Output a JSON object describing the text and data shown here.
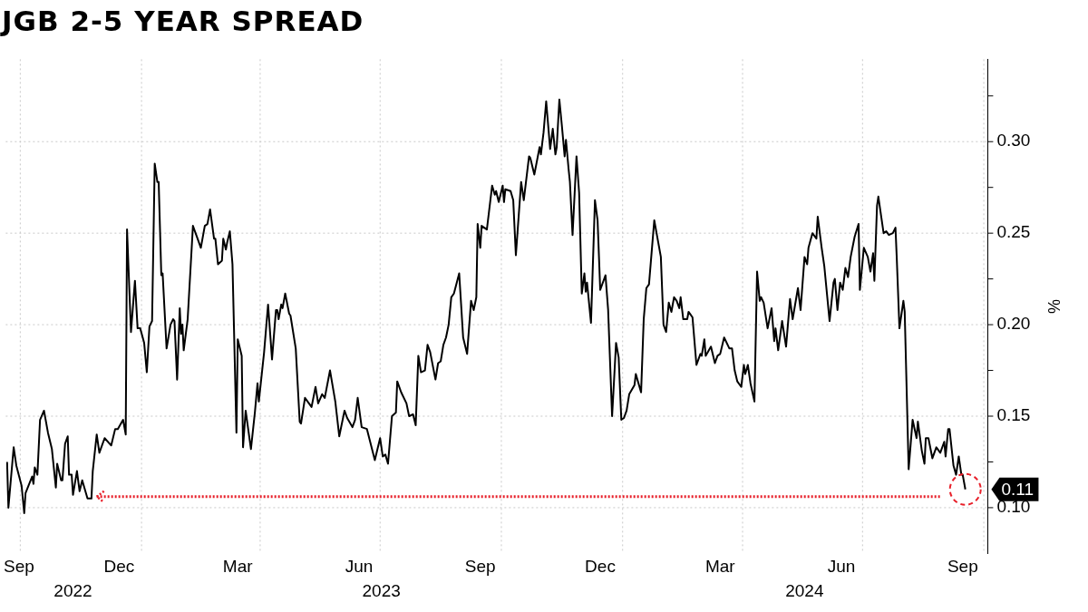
{
  "chart_data": {
    "type": "line",
    "title": "JGB 2-5 YEAR SPREAD",
    "ylabel": "%",
    "xlim": [
      "2022-09-20",
      "2024-10-04"
    ],
    "ylim": [
      0.075,
      0.345
    ],
    "xticks": [
      {
        "value": "2022-09-30",
        "label": "Sep"
      },
      {
        "value": "2022-12-15",
        "label": "Dec"
      },
      {
        "value": "2023-03-15",
        "label": "Mar"
      },
      {
        "value": "2023-06-15",
        "label": "Jun"
      },
      {
        "value": "2023-09-15",
        "label": "Sep"
      },
      {
        "value": "2023-12-15",
        "label": "Dec"
      },
      {
        "value": "2024-03-15",
        "label": "Mar"
      },
      {
        "value": "2024-06-15",
        "label": "Jun"
      },
      {
        "value": "2024-09-15",
        "label": "Sep"
      },
      {
        "value": "2022-10-01",
        "label": null
      },
      {
        "value": "2023-01-01",
        "label": null
      },
      {
        "value": "2023-04-01",
        "label": null
      },
      {
        "value": "2023-07-01",
        "label": null
      },
      {
        "value": "2023-10-01",
        "label": null
      },
      {
        "value": "2024-01-01",
        "label": null
      },
      {
        "value": "2024-04-01",
        "label": null
      },
      {
        "value": "2024-07-01",
        "label": null
      },
      {
        "value": "2024-10-01",
        "label": null
      }
    ],
    "yticks": [
      {
        "value": 0.1,
        "label": "0.10"
      },
      {
        "value": 0.15,
        "label": "0.15"
      },
      {
        "value": 0.2,
        "label": "0.20"
      },
      {
        "value": 0.25,
        "label": "0.25"
      },
      {
        "value": 0.3,
        "label": "0.30"
      },
      {
        "value": 0.125,
        "label": null
      },
      {
        "value": 0.175,
        "label": null
      },
      {
        "value": 0.225,
        "label": null
      },
      {
        "value": 0.275,
        "label": null
      },
      {
        "value": 0.325,
        "label": null
      }
    ],
    "x2lim": [
      "2022-09-20",
      "2024-10-04"
    ],
    "x2ticks": [
      {
        "value": "2022-11-10",
        "label": "2022"
      },
      {
        "value": "2023-07-02",
        "label": "2023"
      },
      {
        "value": "2024-05-18",
        "label": "2024"
      }
    ],
    "grid": true,
    "series": [
      {
        "color": "#000000",
        "x": [
          "2022-09-21",
          "2022-09-22",
          "2022-09-26",
          "2022-09-28",
          "2022-10-02",
          "2022-10-04",
          "2022-10-05",
          "2022-10-10",
          "2022-10-11",
          "2022-10-12",
          "2022-10-14",
          "2022-10-16",
          "2022-10-19",
          "2022-10-22",
          "2022-10-25",
          "2022-10-28",
          "2022-10-29",
          "2022-11-01",
          "2022-11-02",
          "2022-11-04",
          "2022-11-06",
          "2022-11-07",
          "2022-11-09",
          "2022-11-10",
          "2022-11-13",
          "2022-11-15",
          "2022-11-17",
          "2022-11-21",
          "2022-11-24",
          "2022-11-25",
          "2022-11-28",
          "2022-11-30",
          "2022-12-04",
          "2022-12-09",
          "2022-12-12",
          "2022-12-14",
          "2022-12-18",
          "2022-12-20",
          "2022-12-21",
          "2022-12-24",
          "2022-12-27",
          "2022-12-29",
          "2022-12-31",
          "2023-01-03",
          "2023-01-05",
          "2023-01-07",
          "2023-01-09",
          "2023-01-11",
          "2023-01-13",
          "2023-01-14",
          "2023-01-16",
          "2023-01-17",
          "2023-01-20",
          "2023-01-23",
          "2023-01-25",
          "2023-01-26",
          "2023-01-28",
          "2023-01-30",
          "2023-01-31",
          "2023-02-01",
          "2023-02-02",
          "2023-02-05",
          "2023-02-09",
          "2023-02-12",
          "2023-02-15",
          "2023-02-18",
          "2023-02-20",
          "2023-02-22",
          "2023-02-25",
          "2023-02-26",
          "2023-02-28",
          "2023-03-03",
          "2023-03-04",
          "2023-03-06",
          "2023-03-07",
          "2023-03-09",
          "2023-03-11",
          "2023-03-14",
          "2023-03-15",
          "2023-03-18",
          "2023-03-19",
          "2023-03-21",
          "2023-03-25",
          "2023-03-28",
          "2023-03-30",
          "2023-03-31",
          "2023-04-04",
          "2023-04-07",
          "2023-04-10",
          "2023-04-13",
          "2023-04-14",
          "2023-04-15",
          "2023-04-17",
          "2023-04-18",
          "2023-04-20",
          "2023-04-23",
          "2023-04-24",
          "2023-04-28",
          "2023-05-01",
          "2023-05-02",
          "2023-05-05",
          "2023-05-10",
          "2023-05-13",
          "2023-05-15",
          "2023-05-18",
          "2023-05-20",
          "2023-05-24",
          "2023-05-28",
          "2023-05-31",
          "2023-06-04",
          "2023-06-06",
          "2023-06-10",
          "2023-06-12",
          "2023-06-14",
          "2023-06-17",
          "2023-06-21",
          "2023-06-27",
          "2023-07-01",
          "2023-07-03",
          "2023-07-05",
          "2023-07-07",
          "2023-07-10",
          "2023-07-13",
          "2023-07-14",
          "2023-07-17",
          "2023-07-21",
          "2023-07-23",
          "2023-07-26",
          "2023-07-28",
          "2023-07-30",
          "2023-08-01",
          "2023-08-04",
          "2023-08-06",
          "2023-08-08",
          "2023-08-12",
          "2023-08-14",
          "2023-08-16",
          "2023-08-18",
          "2023-08-20",
          "2023-08-22",
          "2023-08-24",
          "2023-08-26",
          "2023-08-30",
          "2023-09-02",
          "2023-09-05",
          "2023-09-08",
          "2023-09-10",
          "2023-09-12",
          "2023-09-13",
          "2023-09-15",
          "2023-09-16",
          "2023-09-20",
          "2023-09-24",
          "2023-09-26",
          "2023-09-27",
          "2023-09-29",
          "2023-10-02",
          "2023-10-03",
          "2023-10-04",
          "2023-10-08",
          "2023-10-10",
          "2023-10-12",
          "2023-10-16",
          "2023-10-18",
          "2023-10-22",
          "2023-10-23",
          "2023-10-26",
          "2023-10-30",
          "2023-10-31",
          "2023-11-02",
          "2023-11-04",
          "2023-11-07",
          "2023-11-09",
          "2023-11-11",
          "2023-11-12",
          "2023-11-14",
          "2023-11-16",
          "2023-11-18",
          "2023-11-19",
          "2023-11-21",
          "2023-11-22",
          "2023-11-24",
          "2023-11-27",
          "2023-11-29",
          "2023-12-01",
          "2023-12-03",
          "2023-12-04",
          "2023-12-05",
          "2023-12-08",
          "2023-12-11",
          "2023-12-13",
          "2023-12-15",
          "2023-12-19",
          "2023-12-21",
          "2023-12-24",
          "2023-12-25",
          "2023-12-27",
          "2023-12-29",
          "2023-12-31",
          "2024-01-02",
          "2024-01-04",
          "2024-01-06",
          "2024-01-10",
          "2024-01-11",
          "2024-01-15",
          "2024-01-17",
          "2024-01-19",
          "2024-01-21",
          "2024-01-25",
          "2024-01-30",
          "2024-02-01",
          "2024-02-03",
          "2024-02-05",
          "2024-02-07",
          "2024-02-09",
          "2024-02-11",
          "2024-02-13",
          "2024-02-14",
          "2024-02-16",
          "2024-02-19",
          "2024-02-20",
          "2024-02-23",
          "2024-02-26",
          "2024-02-29",
          "2024-03-01",
          "2024-03-03",
          "2024-03-04",
          "2024-03-08",
          "2024-03-11",
          "2024-03-13",
          "2024-03-15",
          "2024-03-18",
          "2024-03-22",
          "2024-03-24",
          "2024-03-26",
          "2024-03-28",
          "2024-03-31",
          "2024-04-02",
          "2024-04-03",
          "2024-04-05",
          "2024-04-07",
          "2024-04-10",
          "2024-04-12",
          "2024-04-14",
          "2024-04-15",
          "2024-04-17",
          "2024-04-20",
          "2024-04-23",
          "2024-04-25",
          "2024-04-26",
          "2024-04-28",
          "2024-05-01",
          "2024-05-04",
          "2024-05-07",
          "2024-05-09",
          "2024-05-13",
          "2024-05-15",
          "2024-05-18",
          "2024-05-20",
          "2024-05-21",
          "2024-05-24",
          "2024-05-27",
          "2024-05-28",
          "2024-05-31",
          "2024-06-02",
          "2024-06-06",
          "2024-06-09",
          "2024-06-10",
          "2024-06-12",
          "2024-06-14",
          "2024-06-16",
          "2024-06-18",
          "2024-06-20",
          "2024-06-22",
          "2024-06-25",
          "2024-06-28",
          "2024-06-29",
          "2024-07-02",
          "2024-07-05",
          "2024-07-07",
          "2024-07-09",
          "2024-07-10",
          "2024-07-12",
          "2024-07-13",
          "2024-07-17",
          "2024-07-19",
          "2024-07-21",
          "2024-07-24",
          "2024-07-26",
          "2024-07-27",
          "2024-07-29",
          "2024-08-01",
          "2024-08-02",
          "2024-08-05",
          "2024-08-08",
          "2024-08-11",
          "2024-08-12",
          "2024-08-15",
          "2024-08-17",
          "2024-08-18",
          "2024-08-20",
          "2024-08-23",
          "2024-08-26",
          "2024-08-29",
          "2024-09-01",
          "2024-09-02",
          "2024-09-04",
          "2024-09-05",
          "2024-09-08",
          "2024-09-10",
          "2024-09-12",
          "2024-09-14",
          "2024-09-15",
          "2024-09-17"
        ],
        "values": [
          0.125,
          0.1,
          0.133,
          0.123,
          0.112,
          0.097,
          0.108,
          0.117,
          0.113,
          0.122,
          0.118,
          0.148,
          0.153,
          0.141,
          0.132,
          0.111,
          0.124,
          0.115,
          0.115,
          0.135,
          0.139,
          0.118,
          0.118,
          0.107,
          0.12,
          0.109,
          0.115,
          0.105,
          0.105,
          0.12,
          0.14,
          0.13,
          0.138,
          0.134,
          0.143,
          0.143,
          0.148,
          0.14,
          0.252,
          0.196,
          0.224,
          0.198,
          0.198,
          0.19,
          0.174,
          0.199,
          0.202,
          0.288,
          0.278,
          0.278,
          0.227,
          0.228,
          0.187,
          0.2,
          0.203,
          0.202,
          0.17,
          0.209,
          0.195,
          0.2,
          0.186,
          0.203,
          0.254,
          0.248,
          0.242,
          0.254,
          0.255,
          0.263,
          0.247,
          0.247,
          0.233,
          0.235,
          0.247,
          0.241,
          0.245,
          0.251,
          0.233,
          0.141,
          0.192,
          0.183,
          0.133,
          0.153,
          0.132,
          0.152,
          0.168,
          0.158,
          0.185,
          0.211,
          0.181,
          0.208,
          0.208,
          0.203,
          0.211,
          0.209,
          0.217,
          0.206,
          0.205,
          0.187,
          0.147,
          0.146,
          0.16,
          0.155,
          0.166,
          0.157,
          0.162,
          0.16,
          0.175,
          0.158,
          0.139,
          0.153,
          0.149,
          0.144,
          0.148,
          0.16,
          0.144,
          0.143,
          0.126,
          0.138,
          0.128,
          0.129,
          0.124,
          0.15,
          0.152,
          0.169,
          0.163,
          0.157,
          0.15,
          0.151,
          0.145,
          0.183,
          0.174,
          0.175,
          0.189,
          0.185,
          0.17,
          0.179,
          0.18,
          0.189,
          0.193,
          0.2,
          0.215,
          0.217,
          0.228,
          0.193,
          0.184,
          0.213,
          0.208,
          0.215,
          0.255,
          0.242,
          0.254,
          0.252,
          0.276,
          0.271,
          0.273,
          0.267,
          0.276,
          0.267,
          0.274,
          0.273,
          0.268,
          0.238,
          0.278,
          0.268,
          0.292,
          0.291,
          0.282,
          0.297,
          0.293,
          0.305,
          0.322,
          0.296,
          0.307,
          0.293,
          0.297,
          0.323,
          0.308,
          0.292,
          0.301,
          0.285,
          0.278,
          0.249,
          0.292,
          0.272,
          0.217,
          0.228,
          0.218,
          0.223,
          0.201,
          0.268,
          0.257,
          0.219,
          0.227,
          0.208,
          0.15,
          0.163,
          0.19,
          0.182,
          0.148,
          0.149,
          0.153,
          0.162,
          0.167,
          0.173,
          0.163,
          0.203,
          0.22,
          0.222,
          0.257,
          0.237,
          0.2,
          0.196,
          0.212,
          0.207,
          0.215,
          0.213,
          0.209,
          0.215,
          0.203,
          0.203,
          0.207,
          0.204,
          0.178,
          0.184,
          0.183,
          0.192,
          0.183,
          0.188,
          0.179,
          0.183,
          0.184,
          0.193,
          0.187,
          0.187,
          0.175,
          0.169,
          0.166,
          0.178,
          0.173,
          0.178,
          0.168,
          0.158,
          0.229,
          0.213,
          0.215,
          0.212,
          0.198,
          0.209,
          0.191,
          0.198,
          0.186,
          0.202,
          0.188,
          0.214,
          0.203,
          0.22,
          0.208,
          0.237,
          0.233,
          0.242,
          0.25,
          0.247,
          0.259,
          0.242,
          0.232,
          0.202,
          0.223,
          0.225,
          0.208,
          0.223,
          0.219,
          0.231,
          0.226,
          0.237,
          0.248,
          0.255,
          0.219,
          0.242,
          0.237,
          0.229,
          0.239,
          0.224,
          0.265,
          0.27,
          0.25,
          0.251,
          0.249,
          0.25,
          0.253,
          0.236,
          0.198,
          0.213,
          0.207,
          0.121,
          0.148,
          0.138,
          0.147,
          0.131,
          0.124,
          0.138,
          0.138,
          0.127,
          0.133,
          0.13,
          0.136,
          0.128,
          0.143,
          0.143,
          0.123,
          0.118,
          0.128,
          0.118,
          0.118,
          0.11
        ]
      },
      {
        "type": "line",
        "color": "#e8202a",
        "line_style": "dotted",
        "x": [
          "2022-11-28",
          "2024-08-29"
        ],
        "values": [
          0.106,
          0.106
        ]
      }
    ],
    "annotations": [
      {
        "text": "0.11",
        "x": "2024-09-17",
        "y": 0.11
      }
    ]
  }
}
